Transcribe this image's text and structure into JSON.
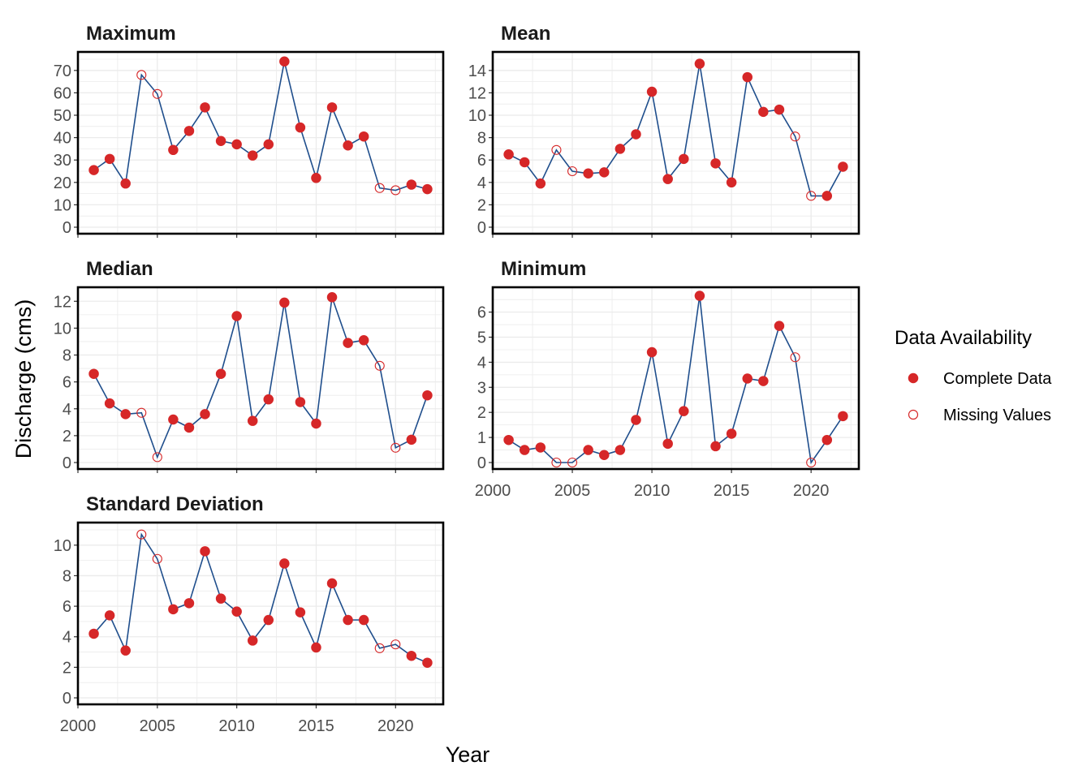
{
  "chart_data": {
    "type": "line",
    "xlabel": "Year",
    "ylabel": "Discharge (cms)",
    "xlim": [
      2000,
      2023
    ],
    "x_ticks": [
      2000,
      2005,
      2010,
      2015,
      2020
    ],
    "x": [
      2001,
      2002,
      2003,
      2004,
      2005,
      2006,
      2007,
      2008,
      2009,
      2010,
      2011,
      2012,
      2013,
      2014,
      2015,
      2016,
      2017,
      2018,
      2019,
      2020,
      2021,
      2022
    ],
    "grid": true,
    "legend": {
      "title": "Data Availability",
      "position": "right",
      "entries": [
        {
          "label": "Complete Data",
          "style": "filled"
        },
        {
          "label": "Missing Values",
          "style": "open"
        }
      ]
    },
    "colors": {
      "line": "#1f4e8c",
      "point": "#d62728",
      "grid": "#ebebeb",
      "panel_border": "#000000"
    },
    "panels": [
      {
        "title": "Maximum",
        "ylim": [
          0,
          75
        ],
        "y_ticks": [
          0,
          10,
          20,
          30,
          40,
          50,
          60,
          70
        ],
        "values": [
          25.5,
          30.5,
          19.5,
          68,
          59.5,
          34.5,
          43,
          53.5,
          38.5,
          37,
          32,
          37,
          74,
          44.5,
          22,
          53.5,
          36.5,
          40.5,
          17.5,
          16.5,
          19,
          17
        ],
        "missing": [
          false,
          false,
          false,
          true,
          true,
          false,
          false,
          false,
          false,
          false,
          false,
          false,
          false,
          false,
          false,
          false,
          false,
          false,
          true,
          true,
          false,
          false
        ]
      },
      {
        "title": "Mean",
        "ylim": [
          0,
          15
        ],
        "y_ticks": [
          0,
          2,
          4,
          6,
          8,
          10,
          12,
          14
        ],
        "values": [
          6.5,
          5.8,
          3.9,
          6.9,
          5.0,
          4.8,
          4.9,
          7.0,
          8.3,
          12.1,
          4.3,
          6.1,
          14.6,
          5.7,
          4.0,
          13.4,
          10.3,
          10.5,
          8.1,
          2.8,
          2.8,
          5.4
        ],
        "missing": [
          false,
          false,
          false,
          true,
          true,
          false,
          false,
          false,
          false,
          false,
          false,
          false,
          false,
          false,
          false,
          false,
          false,
          false,
          true,
          true,
          false,
          false
        ]
      },
      {
        "title": "Median",
        "ylim": [
          0,
          12.5
        ],
        "y_ticks": [
          0,
          2,
          4,
          6,
          8,
          10,
          12
        ],
        "values": [
          6.6,
          4.4,
          3.6,
          3.7,
          0.4,
          3.2,
          2.6,
          3.6,
          6.6,
          10.9,
          3.1,
          4.7,
          11.9,
          4.5,
          2.9,
          12.3,
          8.9,
          9.1,
          7.2,
          1.1,
          1.7,
          5.0
        ],
        "missing": [
          false,
          false,
          false,
          true,
          true,
          false,
          false,
          false,
          false,
          false,
          false,
          false,
          false,
          false,
          false,
          false,
          false,
          false,
          true,
          true,
          false,
          false
        ]
      },
      {
        "title": "Minimum",
        "ylim": [
          0,
          6.7
        ],
        "y_ticks": [
          0,
          1,
          2,
          3,
          4,
          5,
          6
        ],
        "values": [
          0.9,
          0.5,
          0.6,
          0.0,
          0.0,
          0.5,
          0.3,
          0.5,
          1.7,
          4.4,
          0.75,
          2.05,
          6.65,
          0.65,
          1.15,
          3.35,
          3.25,
          5.45,
          4.2,
          0.0,
          0.9,
          1.85
        ],
        "missing": [
          false,
          false,
          false,
          true,
          true,
          false,
          false,
          false,
          false,
          false,
          false,
          false,
          false,
          false,
          false,
          false,
          false,
          false,
          true,
          true,
          false,
          false
        ]
      },
      {
        "title": "Standard Deviation",
        "ylim": [
          0,
          11
        ],
        "y_ticks": [
          0,
          2,
          4,
          6,
          8,
          10
        ],
        "values": [
          4.2,
          5.4,
          3.1,
          10.7,
          9.1,
          5.8,
          6.2,
          9.6,
          6.5,
          5.65,
          3.75,
          5.1,
          8.8,
          5.6,
          3.3,
          7.5,
          5.1,
          5.1,
          3.25,
          3.5,
          2.75,
          2.3
        ],
        "missing": [
          false,
          false,
          false,
          true,
          true,
          false,
          false,
          false,
          false,
          false,
          false,
          false,
          false,
          false,
          false,
          false,
          false,
          false,
          true,
          true,
          false,
          false
        ]
      }
    ]
  }
}
